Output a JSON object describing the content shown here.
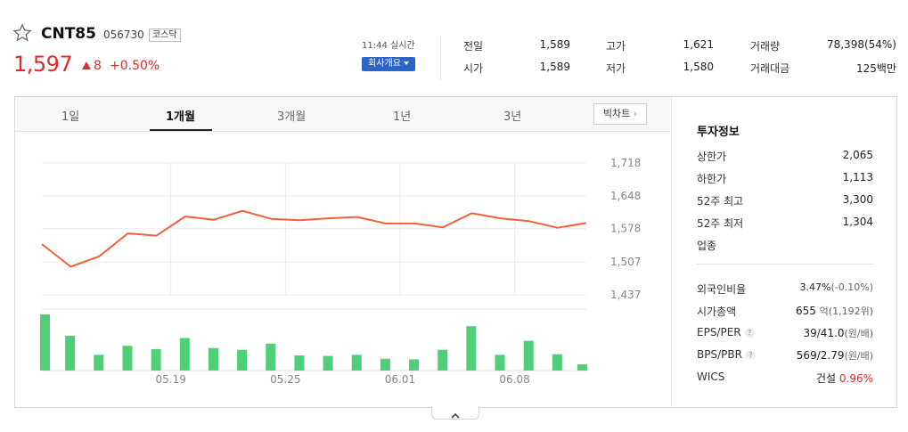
{
  "header": {
    "name": "CNT85",
    "code": "056730",
    "market": "코스닥",
    "price": "1,597",
    "change": "8",
    "change_rate": "+0.50%",
    "time": "11:44 실시간",
    "company_button": "회사개요"
  },
  "quote": {
    "prev_label": "전일",
    "prev_value": "1,589",
    "open_label": "시가",
    "open_value": "1,589",
    "high_label": "고가",
    "high_value": "1,621",
    "low_label": "저가",
    "low_value": "1,580",
    "volume_label": "거래량",
    "volume_value": "78,398(54%)",
    "amount_label": "거래대금",
    "amount_value": "125백만"
  },
  "tabs": [
    "1일",
    "1개월",
    "3개월",
    "1년",
    "3년"
  ],
  "active_tab": 1,
  "big_chart_label": "빅차트",
  "colors": {
    "up": "#e22a2a",
    "down": "#3660c4",
    "line": "#f0603a",
    "volume_bar": "#4fcf78",
    "button": "#2d64c7"
  },
  "chart_data": {
    "type": "line",
    "y_ticks": [
      "1,718",
      "1,648",
      "1,578",
      "1,507",
      "1,437"
    ],
    "y_tick_values": [
      1718,
      1648,
      1578,
      1507,
      1437
    ],
    "ylim": [
      1437,
      1718
    ],
    "x_labels": [
      "05.19",
      "05.25",
      "06.01",
      "06.08"
    ],
    "x_label_indices": [
      4.5,
      8.5,
      12.5,
      16.5
    ],
    "grid": true,
    "series": [
      {
        "values": [
          1545,
          1497,
          1519,
          1568,
          1563,
          1604,
          1597,
          1616,
          1599,
          1596,
          1600,
          1603,
          1589,
          1589,
          1581,
          1611,
          1600,
          1594,
          1580,
          1590
        ]
      }
    ],
    "volume": {
      "values": [
        100,
        62,
        28,
        44,
        38,
        58,
        40,
        37,
        48,
        27,
        26,
        28,
        21,
        20,
        37,
        79,
        28,
        53,
        29,
        11
      ]
    }
  },
  "invest": {
    "title": "투자정보",
    "rows1": [
      {
        "label": "상한가",
        "value": "2,065",
        "color": "red"
      },
      {
        "label": "하한가",
        "value": "1,113",
        "color": "blue"
      },
      {
        "label": "52주 최고",
        "value": "3,300",
        "color": ""
      },
      {
        "label": "52주 최저",
        "value": "1,304",
        "color": ""
      },
      {
        "label": "업종",
        "value": "",
        "color": ""
      }
    ],
    "foreign_label": "외국인비율",
    "foreign_value": "3.47%",
    "foreign_change": "(-0.10%)",
    "mcap_label": "시가총액",
    "mcap_value": "655",
    "mcap_unit": "억(1,192위)",
    "eps_label": "EPS/PER",
    "eps_value": "39/41.0",
    "eps_unit": "(원/배)",
    "bps_label": "BPS/PBR",
    "bps_value": "569/2.79",
    "bps_unit": "(원/배)",
    "wics_label": "WICS",
    "wics_value": "건설",
    "wics_rate": "0.96%",
    "help_icon_text": "?"
  }
}
